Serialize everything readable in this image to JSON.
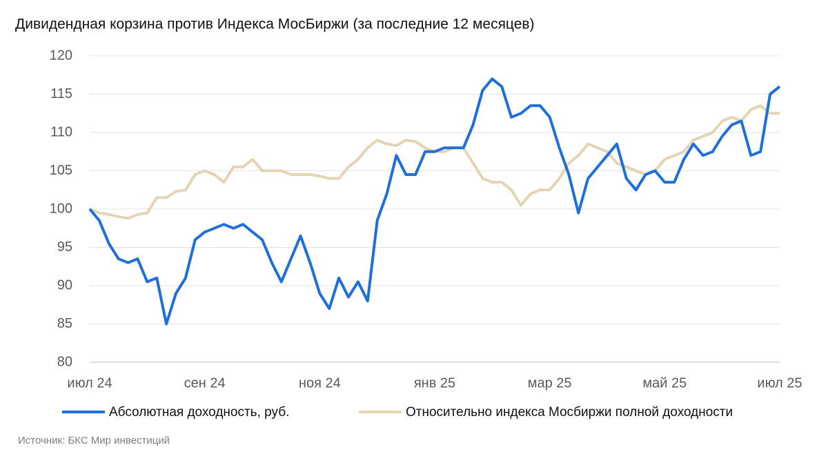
{
  "chart_data": {
    "type": "line",
    "title": "Дивидендная корзина против Индекса МосБиржи (за последние 12 месяцев)",
    "source": "Источник: БКС Мир инвестиций",
    "categories": [
      "июл 24",
      null,
      null,
      null,
      null,
      null,
      null,
      null,
      null,
      null,
      null,
      null,
      "сен 24",
      null,
      null,
      null,
      null,
      null,
      null,
      null,
      null,
      null,
      null,
      null,
      "ноя 24",
      null,
      null,
      null,
      null,
      null,
      null,
      null,
      null,
      null,
      null,
      null,
      "янв 25",
      null,
      null,
      null,
      null,
      null,
      null,
      null,
      null,
      null,
      null,
      null,
      "мар 25",
      null,
      null,
      null,
      null,
      null,
      null,
      null,
      null,
      null,
      null,
      null,
      "май 25",
      null,
      null,
      null,
      null,
      null,
      null,
      null,
      null,
      null,
      null,
      null,
      "июл 25"
    ],
    "series": [
      {
        "name": "Абсолютная доходность, руб.",
        "color": "#1f6fdb",
        "values": [
          100,
          98.5,
          95.5,
          93.5,
          93,
          93.5,
          90.5,
          91,
          85,
          89,
          91,
          96,
          97,
          97.5,
          98,
          97.5,
          98,
          97,
          96,
          93,
          90.5,
          93.5,
          96.5,
          93,
          89,
          87,
          91,
          88.5,
          90.5,
          88,
          98.5,
          102,
          107,
          104.5,
          104.5,
          107.5,
          107.5,
          108,
          108,
          108,
          111,
          115.5,
          117,
          116,
          112,
          112.5,
          113.5,
          113.5,
          112,
          108,
          104.5,
          99.5,
          104,
          105.5,
          107,
          108.5,
          104,
          102.5,
          104.5,
          105,
          103.5,
          103.5,
          106.5,
          108.5,
          107,
          107.5,
          109.5,
          111,
          111.5,
          107,
          107.5,
          115,
          116
        ]
      },
      {
        "name": "Относительно индекса Мосбиржи полной доходности",
        "color": "#e3d5b4",
        "values": [
          100,
          99.5,
          99.3,
          99,
          98.8,
          99.3,
          99.5,
          101.5,
          101.5,
          102.3,
          102.5,
          104.5,
          105,
          104.5,
          103.5,
          105.5,
          105.5,
          106.5,
          105,
          105,
          105,
          104.5,
          104.5,
          104.5,
          104.3,
          104,
          104,
          105.5,
          106.5,
          108,
          109,
          108.5,
          108.3,
          109,
          108.8,
          108,
          107.5,
          107.5,
          108,
          108,
          106,
          104,
          103.5,
          103.5,
          102.5,
          100.5,
          102,
          102.5,
          102.5,
          104,
          106,
          107,
          108.5,
          108,
          107.5,
          106,
          105.5,
          105,
          104.5,
          105,
          106.5,
          107,
          107.5,
          109,
          109.5,
          110,
          111.5,
          112,
          111.5,
          113,
          113.5,
          112.5,
          112.5
        ]
      }
    ],
    "ylim": [
      80,
      120
    ],
    "yticks": [
      80,
      85,
      90,
      95,
      100,
      105,
      110,
      115,
      120
    ],
    "grid": true
  }
}
